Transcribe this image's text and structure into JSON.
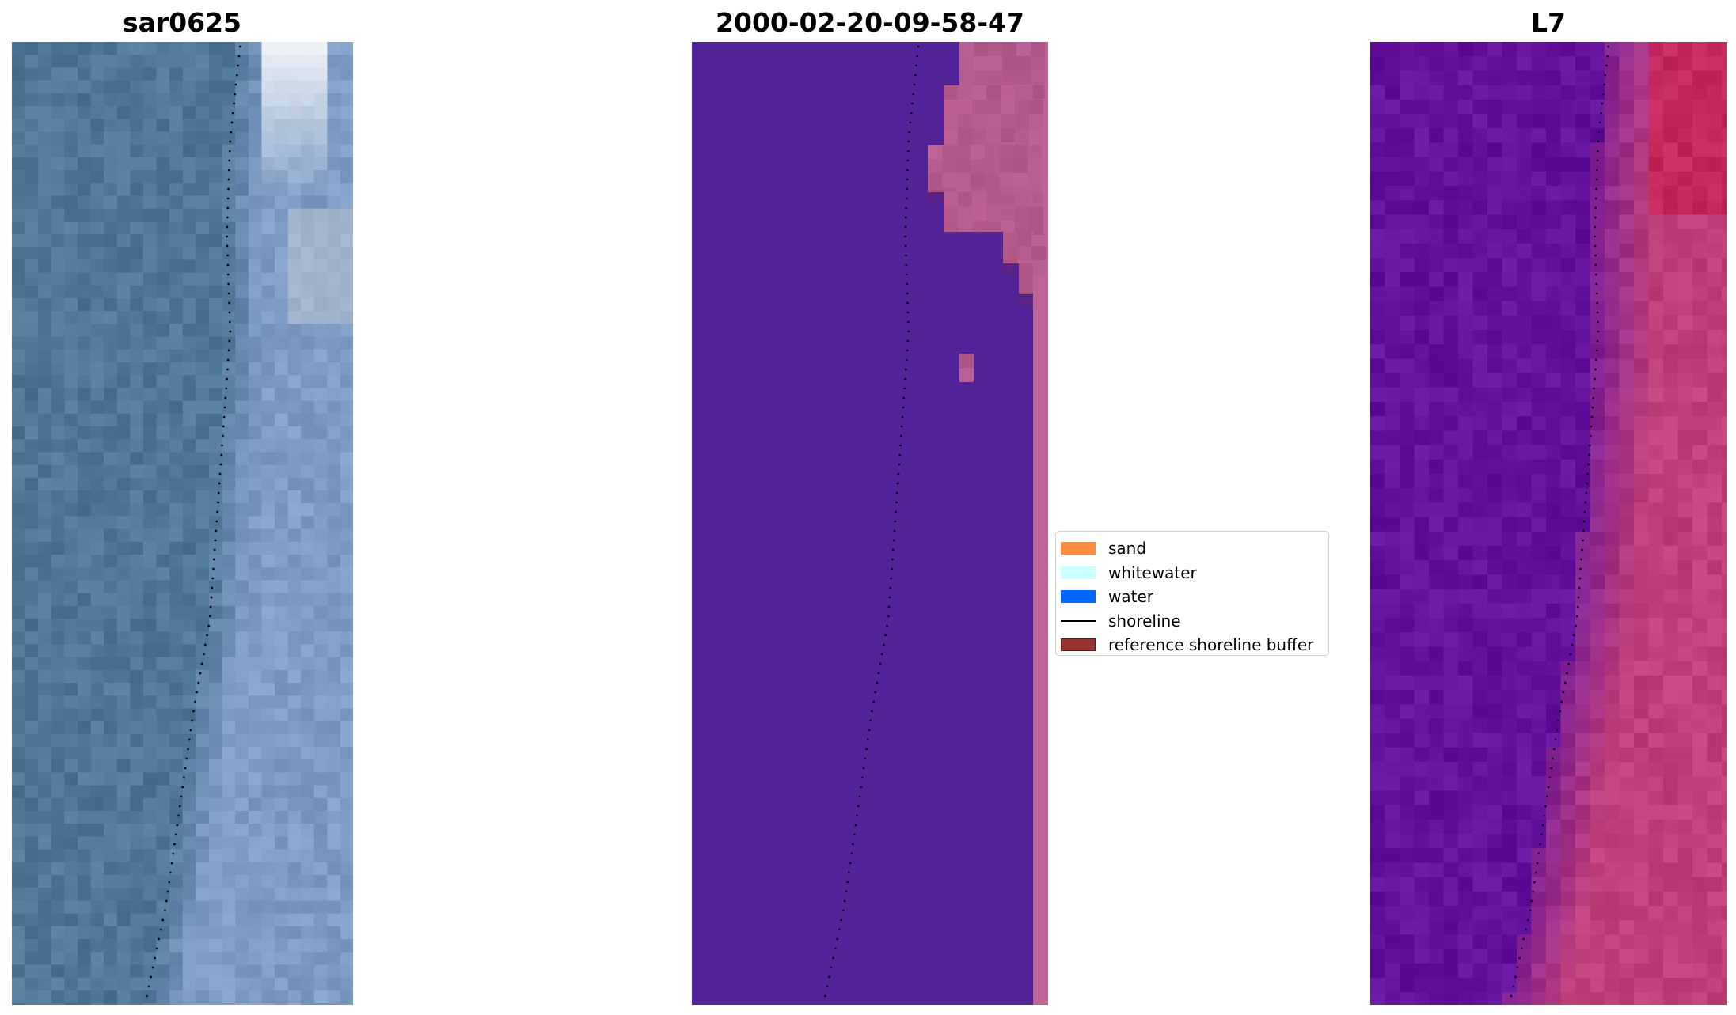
{
  "panels": [
    {
      "title": "sar0625",
      "kind": "rgb-image"
    },
    {
      "title": "2000-02-20-09-58-47",
      "kind": "classified-image"
    },
    {
      "title": "L7",
      "kind": "mndwi-image"
    }
  ],
  "legend": {
    "items": [
      {
        "label": "sand",
        "type": "patch",
        "color": "#ff8c40"
      },
      {
        "label": "whitewater",
        "type": "patch",
        "color": "#ccffff"
      },
      {
        "label": "water",
        "type": "patch",
        "color": "#0066ff"
      },
      {
        "label": "shoreline",
        "type": "line",
        "color": "#000000"
      },
      {
        "label": "reference shoreline buffer",
        "type": "patch",
        "color": "#993333"
      }
    ]
  },
  "colors": {
    "rgb_sea": "#4f7898",
    "rgb_sand": "#7e9cc4",
    "class_bg": "#522398",
    "class_buffer": "#be6396",
    "index_low": "#5f10a0",
    "index_high": "#c0407a"
  }
}
